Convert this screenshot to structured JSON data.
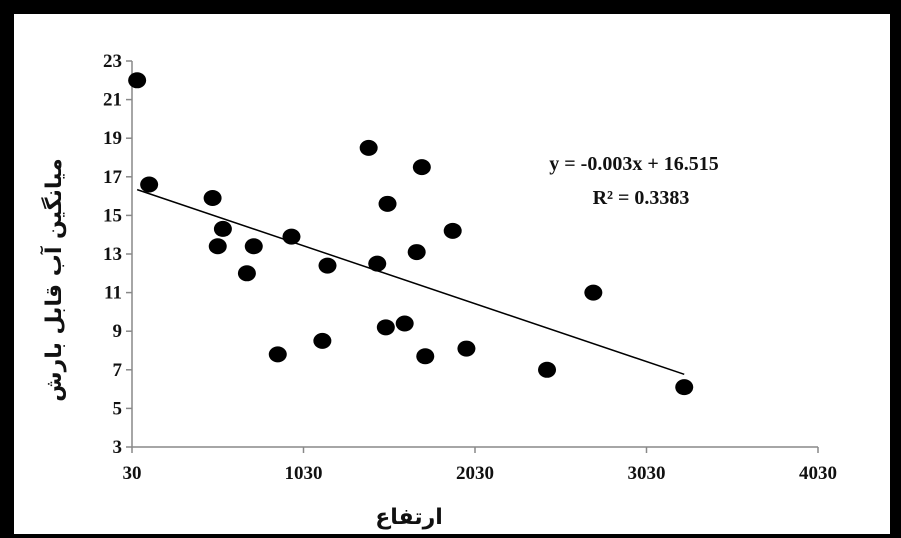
{
  "chart_data": {
    "type": "scatter",
    "title": "",
    "xlabel": "ارتفاع",
    "ylabel": "میانگین آب قابل بارش",
    "xlim": [
      30,
      4030
    ],
    "ylim": [
      3,
      23
    ],
    "xticks": [
      30,
      1030,
      2030,
      3030,
      4030
    ],
    "yticks": [
      3,
      5,
      7,
      9,
      11,
      13,
      15,
      17,
      19,
      21,
      23
    ],
    "grid": false,
    "legend": "none",
    "points": [
      {
        "x": 60,
        "y": 22.0
      },
      {
        "x": 130,
        "y": 16.6
      },
      {
        "x": 500,
        "y": 15.9
      },
      {
        "x": 560,
        "y": 14.3
      },
      {
        "x": 530,
        "y": 13.4
      },
      {
        "x": 740,
        "y": 13.4
      },
      {
        "x": 700,
        "y": 12.0
      },
      {
        "x": 880,
        "y": 7.8
      },
      {
        "x": 960,
        "y": 13.9
      },
      {
        "x": 1170,
        "y": 12.4
      },
      {
        "x": 1140,
        "y": 8.5
      },
      {
        "x": 1410,
        "y": 18.5
      },
      {
        "x": 1460,
        "y": 12.5
      },
      {
        "x": 1520,
        "y": 15.6
      },
      {
        "x": 1510,
        "y": 9.2
      },
      {
        "x": 1620,
        "y": 9.4
      },
      {
        "x": 1690,
        "y": 13.1
      },
      {
        "x": 1720,
        "y": 17.5
      },
      {
        "x": 1740,
        "y": 7.7
      },
      {
        "x": 1900,
        "y": 14.2
      },
      {
        "x": 1980,
        "y": 8.1
      },
      {
        "x": 2450,
        "y": 7.0
      },
      {
        "x": 2720,
        "y": 11.0
      },
      {
        "x": 3250,
        "y": 6.1
      }
    ],
    "trendline": {
      "slope": -0.003,
      "intercept": 16.515,
      "x_range": [
        60,
        3250
      ],
      "equation": "y = -0.003x + 16.515",
      "r_squared": "R² = 0.3383"
    },
    "colors": {
      "point": "#000000",
      "line": "#000000",
      "axis": "#888888"
    }
  }
}
